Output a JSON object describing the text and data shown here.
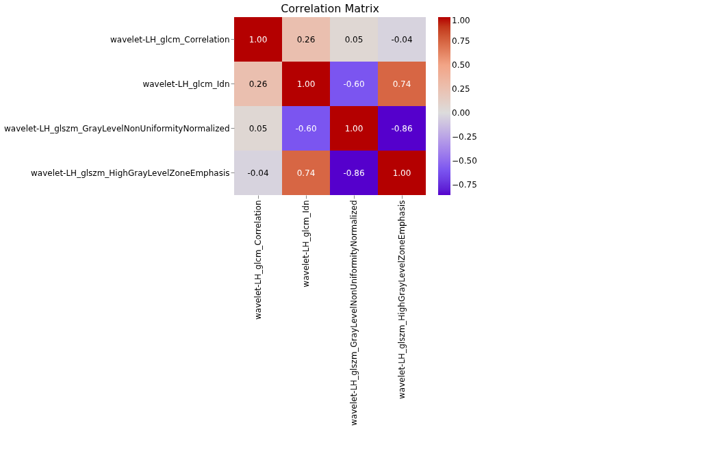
{
  "chart_data": {
    "type": "heatmap",
    "title": "Correlation Matrix",
    "categories": [
      "wavelet-LH_glcm_Correlation",
      "wavelet-LH_glcm_Idn",
      "wavelet-LH_glszm_GrayLevelNonUniformityNormalized",
      "wavelet-LH_glszm_HighGrayLevelZoneEmphasis"
    ],
    "y_categories": [
      "wavelet-LH_glcm_Correlation",
      "wavelet-LH_glcm_Idn",
      "wavelet-LH_glszm_GrayLevelNonUniformityNormalized",
      "wavelet-LH_glszm_HighGrayLevelZoneEmphasis"
    ],
    "cells": [
      [
        1.0,
        0.26,
        0.05,
        -0.04
      ],
      [
        0.26,
        1.0,
        -0.6,
        0.74
      ],
      [
        0.05,
        -0.6,
        1.0,
        -0.86
      ],
      [
        -0.04,
        0.74,
        -0.86,
        1.0
      ]
    ],
    "cell_labels": [
      [
        "1.00",
        "0.26",
        "0.05",
        "-0.04"
      ],
      [
        "0.26",
        "1.00",
        "-0.60",
        "0.74"
      ],
      [
        "0.05",
        "-0.60",
        "1.00",
        "-0.86"
      ],
      [
        "-0.04",
        "0.74",
        "-0.86",
        "1.00"
      ]
    ],
    "clim": [
      -0.86,
      1.0
    ],
    "cticks": [
      {
        "value": 1.0,
        "label": "1.00"
      },
      {
        "value": 0.75,
        "label": "0.75"
      },
      {
        "value": 0.5,
        "label": "0.50"
      },
      {
        "value": 0.25,
        "label": "0.25"
      },
      {
        "value": 0.0,
        "label": "0.00"
      },
      {
        "value": -0.25,
        "label": "−0.25"
      },
      {
        "value": -0.5,
        "label": "−0.50"
      },
      {
        "value": -0.75,
        "label": "−0.75"
      }
    ]
  }
}
